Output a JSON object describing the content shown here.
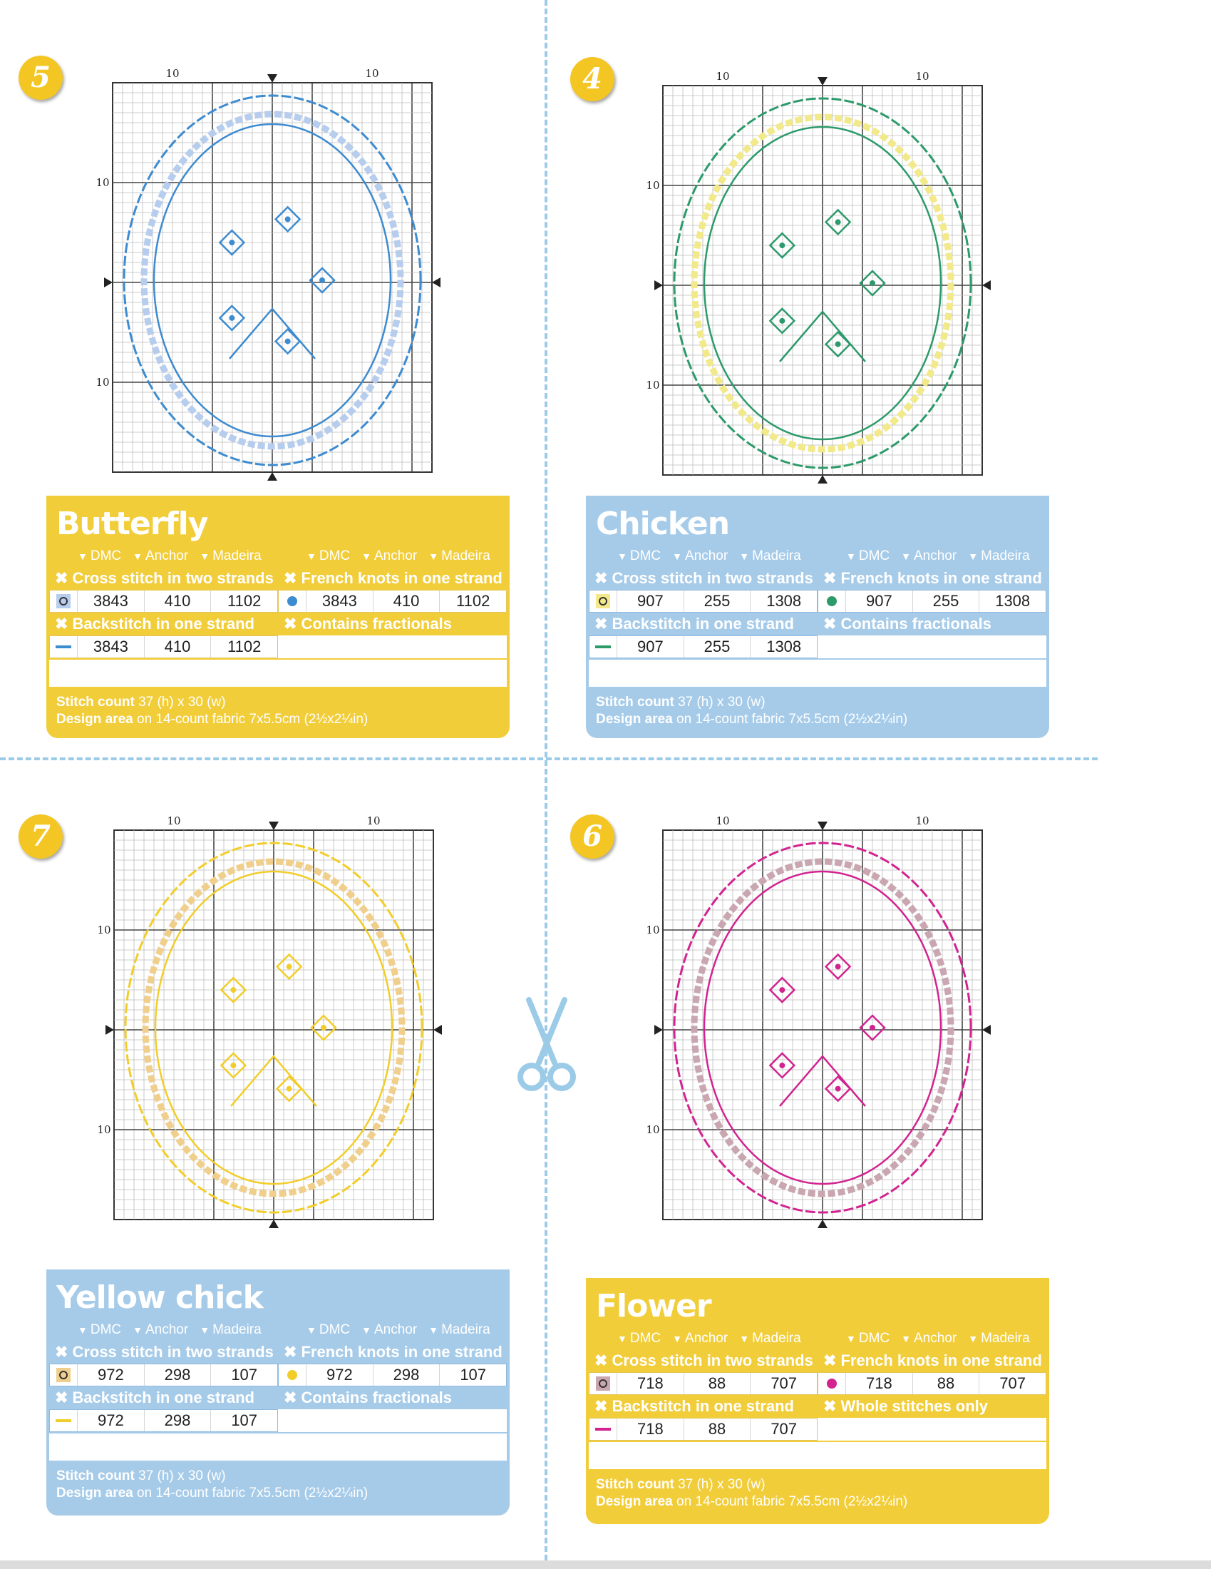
{
  "patterns": [
    {
      "id": "butterfly",
      "number": "5",
      "title": "Butterfly",
      "color": "#3d8bd0",
      "symbol_fill": "#b7cdee",
      "card_color": "yellow",
      "axis": {
        "top_left": "10",
        "top_right": "10",
        "left_top": "10",
        "left_bottom": "10"
      },
      "table": {
        "headers": [
          "DMC",
          "Anchor",
          "Madeira"
        ],
        "cross_label": "Cross stitch in two strands",
        "french_label": "French knots in one strand",
        "back_label": "Backstitch in one strand",
        "extra_label": "Contains fractionals",
        "cross": [
          "3843",
          "410",
          "1102"
        ],
        "french": [
          "3843",
          "410",
          "1102"
        ],
        "back": [
          "3843",
          "410",
          "1102"
        ]
      },
      "footer": {
        "stitch_label": "Stitch count",
        "stitch": "37 (h) x 30 (w)",
        "area_label": "Design area",
        "area": "on 14-count fabric 7x5.5cm (2½x2¼in)"
      }
    },
    {
      "id": "chicken",
      "number": "4",
      "title": "Chicken",
      "color": "#2c9a6a",
      "symbol_fill": "#f2e98a",
      "card_color": "blue",
      "axis": {
        "top_left": "10",
        "top_right": "10",
        "left_top": "10",
        "left_bottom": "10"
      },
      "table": {
        "headers": [
          "DMC",
          "Anchor",
          "Madeira"
        ],
        "cross_label": "Cross stitch in two strands",
        "french_label": "French knots in one strand",
        "back_label": "Backstitch in one strand",
        "extra_label": "Contains fractionals",
        "cross": [
          "907",
          "255",
          "1308"
        ],
        "french": [
          "907",
          "255",
          "1308"
        ],
        "back": [
          "907",
          "255",
          "1308"
        ]
      },
      "footer": {
        "stitch_label": "Stitch count",
        "stitch": "37 (h) x 30 (w)",
        "area_label": "Design area",
        "area": "on 14-count fabric 7x5.5cm (2½x2¼in)"
      }
    },
    {
      "id": "yellow-chick",
      "number": "7",
      "title": "Yellow chick",
      "color": "#f2cd2a",
      "symbol_fill": "#f0cf8c",
      "card_color": "blue",
      "axis": {
        "top_left": "10",
        "top_right": "10",
        "left_top": "10",
        "left_bottom": "10"
      },
      "table": {
        "headers": [
          "DMC",
          "Anchor",
          "Madeira"
        ],
        "cross_label": "Cross stitch in two strands",
        "french_label": "French knots in one strand",
        "back_label": "Backstitch in one strand",
        "extra_label": "Contains fractionals",
        "cross": [
          "972",
          "298",
          "107"
        ],
        "french": [
          "972",
          "298",
          "107"
        ],
        "back": [
          "972",
          "298",
          "107"
        ]
      },
      "footer": {
        "stitch_label": "Stitch count",
        "stitch": "37 (h) x 30 (w)",
        "area_label": "Design area",
        "area": "on 14-count fabric 7x5.5cm (2½x2¼in)"
      }
    },
    {
      "id": "flower",
      "number": "6",
      "title": "Flower",
      "color": "#d22390",
      "symbol_fill": "#c9a6b0",
      "card_color": "yellow",
      "axis": {
        "top_left": "10",
        "top_right": "10",
        "left_top": "10",
        "left_bottom": "10"
      },
      "table": {
        "headers": [
          "DMC",
          "Anchor",
          "Madeira"
        ],
        "cross_label": "Cross stitch in two strands",
        "french_label": "French knots in one strand",
        "back_label": "Backstitch in one strand",
        "extra_label": "Whole stitches only",
        "cross": [
          "718",
          "88",
          "707"
        ],
        "french": [
          "718",
          "88",
          "707"
        ],
        "back": [
          "718",
          "88",
          "707"
        ]
      },
      "footer": {
        "stitch_label": "Stitch count",
        "stitch": "37 (h) x 30 (w)",
        "area_label": "Design area",
        "area": "on 14-count fabric 7x5.5cm (2½x2¼in)"
      }
    }
  ],
  "icons": {
    "separator": "scissors-icon",
    "section_marker": "cross-mark-icon",
    "column_marker": "down-triangle-icon"
  }
}
